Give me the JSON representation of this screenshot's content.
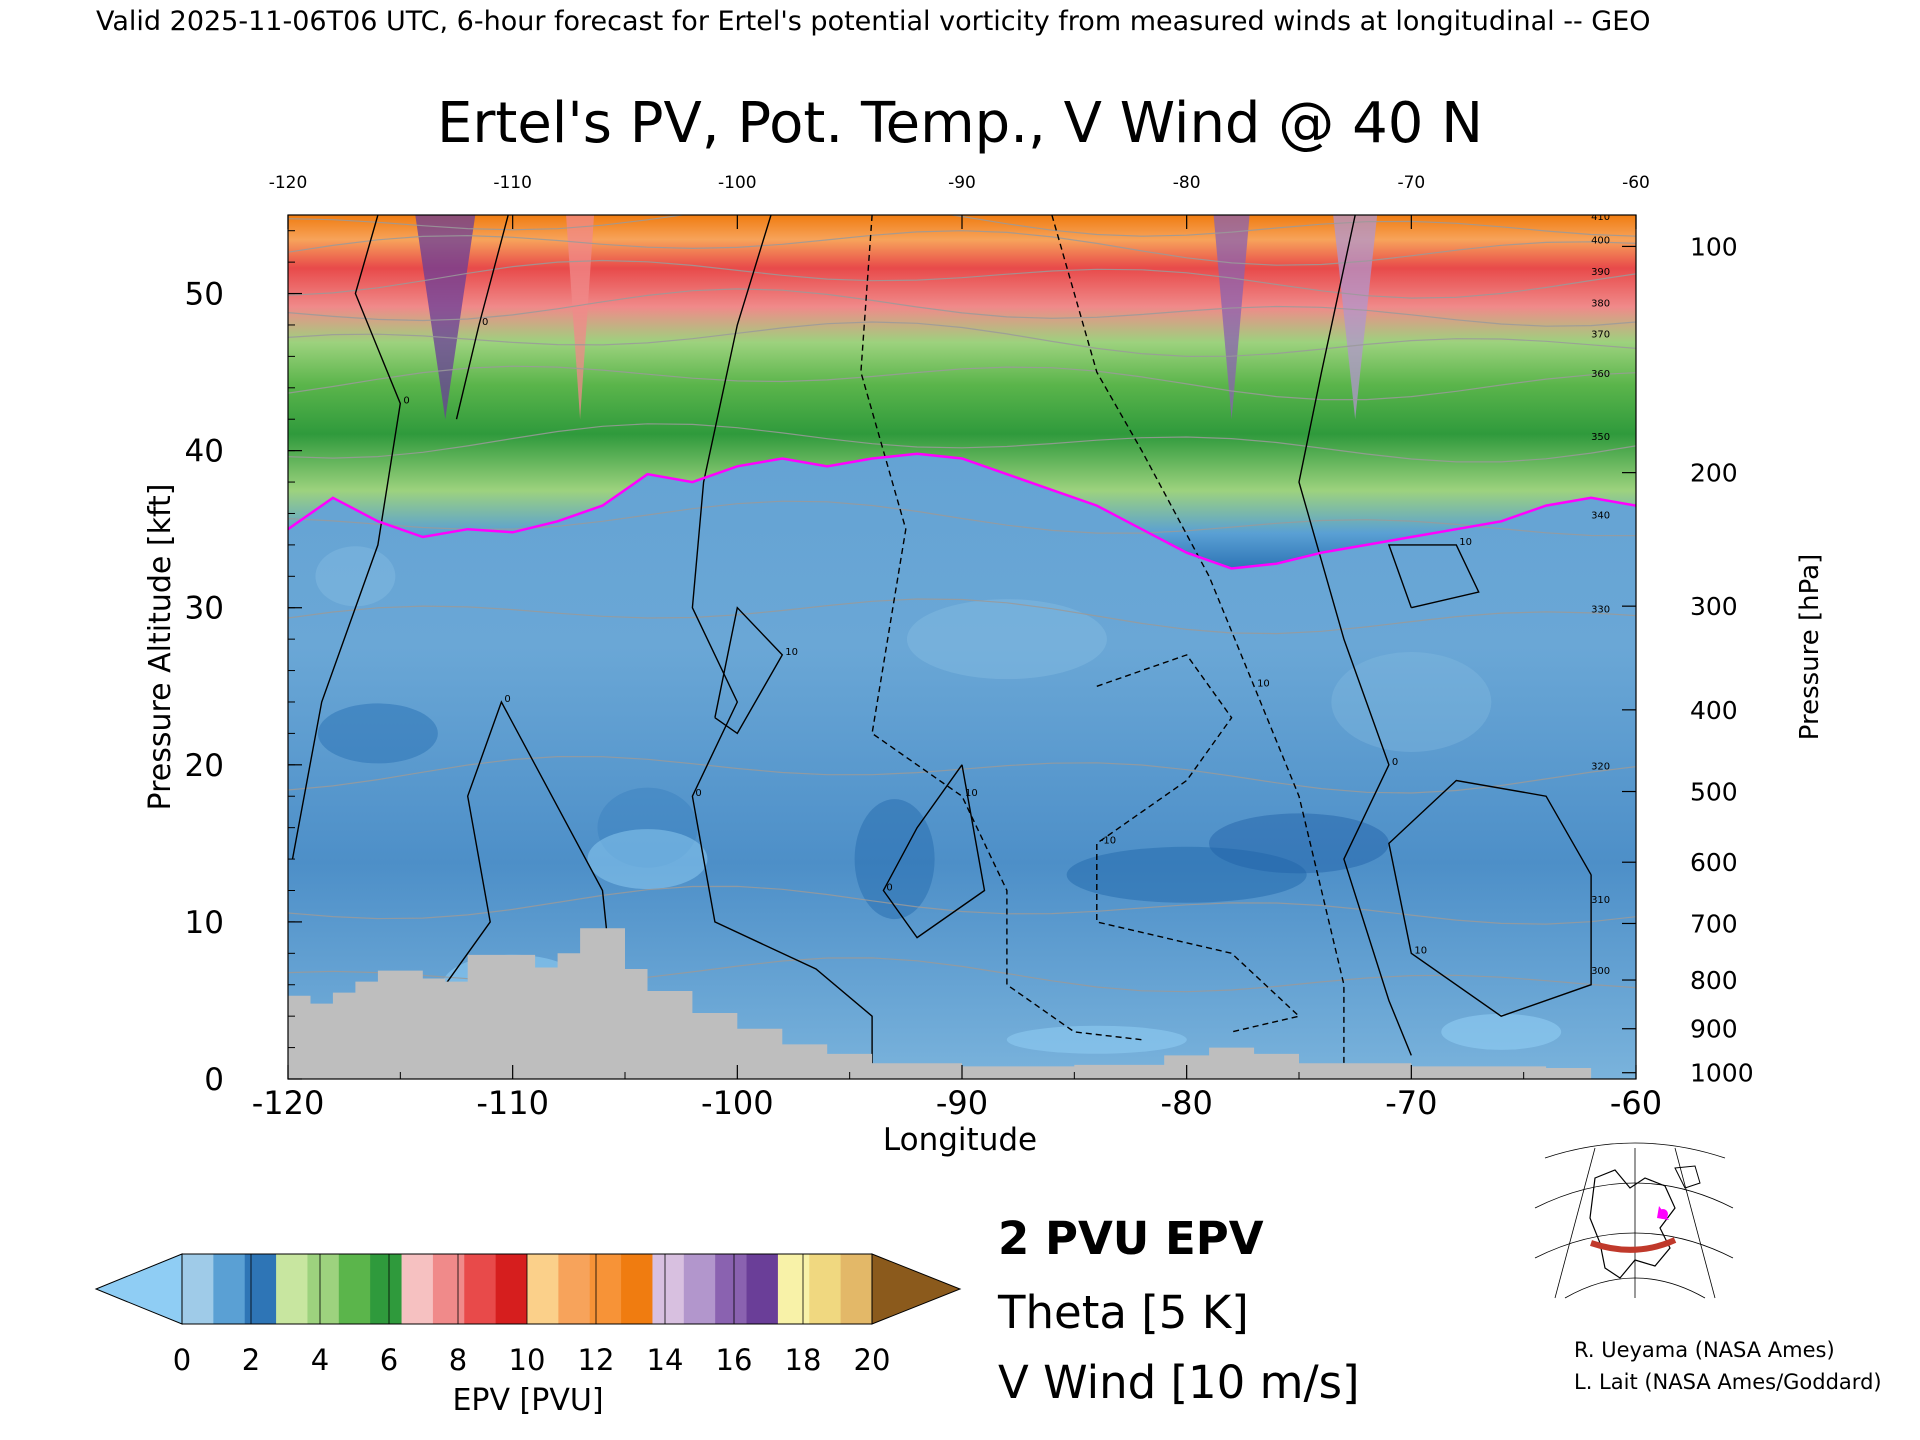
{
  "header": {
    "valid_line": "Valid 2025-11-06T06 UTC, 6-hour forecast for Ertel's potential vorticity from measured winds at longitudinal -- GEO"
  },
  "chart_data": {
    "type": "heatmap",
    "title": "Ertel's PV, Pot. Temp., V Wind @ 40 N",
    "xlabel": "Longitude",
    "ylabel_left": "Pressure Altitude [kft]",
    "ylabel_right": "Pressure [hPa]",
    "xlim": [
      -120,
      -60
    ],
    "ylim_kft": [
      0,
      55
    ],
    "x_ticks": [
      "-120",
      "-110",
      "-100",
      "-90",
      "-80",
      "-70",
      "-60"
    ],
    "x_tick_values": [
      -120,
      -110,
      -100,
      -90,
      -80,
      -70,
      -60
    ],
    "y_left_ticks": [
      "0",
      "10",
      "20",
      "30",
      "40",
      "50"
    ],
    "y_left_tick_values": [
      0,
      10,
      20,
      30,
      40,
      50
    ],
    "y_right_ticks": [
      {
        "label": "1000",
        "kft": 0.4
      },
      {
        "label": "900",
        "kft": 3.2
      },
      {
        "label": "800",
        "kft": 6.3
      },
      {
        "label": "700",
        "kft": 9.9
      },
      {
        "label": "600",
        "kft": 13.8
      },
      {
        "label": "500",
        "kft": 18.3
      },
      {
        "label": "400",
        "kft": 23.5
      },
      {
        "label": "300",
        "kft": 30.1
      },
      {
        "label": "200",
        "kft": 38.6
      },
      {
        "label": "100",
        "kft": 53.0
      }
    ],
    "tropopause_2pvu_kft": [
      {
        "lon": -120,
        "kft": 35.0
      },
      {
        "lon": -118,
        "kft": 37.0
      },
      {
        "lon": -116,
        "kft": 35.5
      },
      {
        "lon": -114,
        "kft": 34.5
      },
      {
        "lon": -112,
        "kft": 35.0
      },
      {
        "lon": -110,
        "kft": 34.8
      },
      {
        "lon": -108,
        "kft": 35.5
      },
      {
        "lon": -106,
        "kft": 36.5
      },
      {
        "lon": -104,
        "kft": 38.5
      },
      {
        "lon": -102,
        "kft": 38.0
      },
      {
        "lon": -100,
        "kft": 39.0
      },
      {
        "lon": -98,
        "kft": 39.5
      },
      {
        "lon": -96,
        "kft": 39.0
      },
      {
        "lon": -94,
        "kft": 39.5
      },
      {
        "lon": -92,
        "kft": 39.8
      },
      {
        "lon": -90,
        "kft": 39.5
      },
      {
        "lon": -88,
        "kft": 38.5
      },
      {
        "lon": -86,
        "kft": 37.5
      },
      {
        "lon": -84,
        "kft": 36.5
      },
      {
        "lon": -82,
        "kft": 35.0
      },
      {
        "lon": -80,
        "kft": 33.5
      },
      {
        "lon": -78,
        "kft": 32.5
      },
      {
        "lon": -76,
        "kft": 32.8
      },
      {
        "lon": -74,
        "kft": 33.5
      },
      {
        "lon": -72,
        "kft": 34.0
      },
      {
        "lon": -70,
        "kft": 34.5
      },
      {
        "lon": -68,
        "kft": 35.0
      },
      {
        "lon": -66,
        "kft": 35.5
      },
      {
        "lon": -64,
        "kft": 36.5
      },
      {
        "lon": -62,
        "kft": 37.0
      },
      {
        "lon": -60,
        "kft": 36.5
      }
    ],
    "terrain_kft": [
      {
        "lon": -120,
        "kft": 5.3
      },
      {
        "lon": -119,
        "kft": 4.8
      },
      {
        "lon": -118,
        "kft": 5.5
      },
      {
        "lon": -117,
        "kft": 6.2
      },
      {
        "lon": -116,
        "kft": 6.9
      },
      {
        "lon": -114,
        "kft": 6.4
      },
      {
        "lon": -113,
        "kft": 6.2
      },
      {
        "lon": -112,
        "kft": 7.9
      },
      {
        "lon": -110,
        "kft": 7.9
      },
      {
        "lon": -109,
        "kft": 7.1
      },
      {
        "lon": -108,
        "kft": 8.0
      },
      {
        "lon": -107,
        "kft": 9.6
      },
      {
        "lon": -105,
        "kft": 7.0
      },
      {
        "lon": -104,
        "kft": 5.6
      },
      {
        "lon": -102,
        "kft": 4.2
      },
      {
        "lon": -100,
        "kft": 3.2
      },
      {
        "lon": -98,
        "kft": 2.2
      },
      {
        "lon": -96,
        "kft": 1.6
      },
      {
        "lon": -94,
        "kft": 1.0
      },
      {
        "lon": -90,
        "kft": 0.8
      },
      {
        "lon": -85,
        "kft": 0.9
      },
      {
        "lon": -81,
        "kft": 1.5
      },
      {
        "lon": -79,
        "kft": 2.0
      },
      {
        "lon": -77,
        "kft": 1.6
      },
      {
        "lon": -75,
        "kft": 1.0
      },
      {
        "lon": -70,
        "kft": 0.8
      },
      {
        "lon": -64,
        "kft": 0.7
      },
      {
        "lon": -62,
        "kft": 0.0
      },
      {
        "lon": -60,
        "kft": 0.0
      }
    ],
    "v_wind_contours": [
      {
        "label": "0",
        "style": "solid",
        "points": [
          [
            -119.8,
            14
          ],
          [
            -118.5,
            24
          ],
          [
            -116,
            34
          ],
          [
            -115,
            43
          ],
          [
            -117,
            50
          ],
          [
            -116,
            55
          ]
        ]
      },
      {
        "label": "0",
        "style": "solid",
        "points": [
          [
            -110.2,
            55
          ],
          [
            -111.5,
            48
          ],
          [
            -112.5,
            42
          ]
        ]
      },
      {
        "label": "0",
        "style": "solid",
        "points": [
          [
            -105.5,
            5
          ],
          [
            -106,
            12
          ],
          [
            -109,
            20
          ],
          [
            -110.5,
            24
          ],
          [
            -112,
            18
          ],
          [
            -111,
            10
          ],
          [
            -113,
            6
          ]
        ]
      },
      {
        "label": "0",
        "style": "solid",
        "points": [
          [
            -98.5,
            55
          ],
          [
            -100,
            48
          ],
          [
            -101.5,
            38
          ],
          [
            -102,
            30
          ],
          [
            -100,
            24
          ],
          [
            -102,
            18
          ],
          [
            -101,
            10
          ],
          [
            -96.5,
            7
          ],
          [
            -94,
            4
          ],
          [
            -94,
            1
          ]
        ]
      },
      {
        "label": "10",
        "style": "solid",
        "points": [
          [
            -101,
            23
          ],
          [
            -100,
            30
          ],
          [
            -98,
            27
          ],
          [
            -100,
            22
          ],
          [
            -101,
            23
          ]
        ]
      },
      {
        "label": "0",
        "style": "solid",
        "points": [
          [
            -90,
            20
          ],
          [
            -89,
            12
          ],
          [
            -92,
            9
          ],
          [
            -93.5,
            12
          ],
          [
            -92,
            16
          ],
          [
            -90,
            20
          ]
        ]
      },
      {
        "label": "10",
        "style": "dashed",
        "points": [
          [
            -94,
            55
          ],
          [
            -94.5,
            45
          ],
          [
            -92.5,
            35
          ],
          [
            -94,
            22
          ],
          [
            -90,
            18
          ],
          [
            -88,
            12
          ],
          [
            -88,
            6
          ],
          [
            -85,
            3
          ],
          [
            -82,
            2.5
          ]
        ]
      },
      {
        "label": "-10",
        "style": "dashed",
        "points": [
          [
            -84,
            25
          ],
          [
            -80,
            27
          ],
          [
            -78,
            23
          ],
          [
            -80,
            19
          ],
          [
            -84,
            15
          ],
          [
            -84,
            10
          ],
          [
            -78,
            8
          ],
          [
            -75,
            4
          ],
          [
            -78,
            3
          ]
        ]
      },
      {
        "label": "10",
        "style": "dashed",
        "points": [
          [
            -86,
            55
          ],
          [
            -84,
            45
          ],
          [
            -82,
            40
          ],
          [
            -79,
            32
          ],
          [
            -77,
            25
          ],
          [
            -75,
            18
          ],
          [
            -74,
            12
          ],
          [
            -73,
            6
          ],
          [
            -73,
            1
          ]
        ]
      },
      {
        "label": "0",
        "style": "solid",
        "points": [
          [
            -72.5,
            55
          ],
          [
            -74,
            45
          ],
          [
            -75,
            38
          ],
          [
            -73,
            28
          ],
          [
            -71,
            20
          ],
          [
            -73,
            14
          ],
          [
            -71,
            5
          ],
          [
            -70,
            1.5
          ]
        ]
      },
      {
        "label": "10",
        "style": "solid",
        "points": [
          [
            -70,
            30
          ],
          [
            -67,
            31
          ],
          [
            -68,
            34
          ],
          [
            -71,
            34
          ],
          [
            -70,
            30
          ]
        ]
      },
      {
        "label": "10",
        "style": "solid",
        "points": [
          [
            -62,
            13
          ],
          [
            -64,
            18
          ],
          [
            -68,
            19
          ],
          [
            -71,
            15
          ],
          [
            -70,
            8
          ],
          [
            -66,
            4
          ],
          [
            -62,
            6
          ],
          [
            -62,
            13
          ]
        ]
      }
    ],
    "theta_levels_K": [
      "300",
      "310",
      "320",
      "330",
      "340",
      "350",
      "360",
      "370",
      "380",
      "390",
      "400",
      "410"
    ],
    "theta_level_kft": [
      6.5,
      11.0,
      19.5,
      29.5,
      35.5,
      40.5,
      44.5,
      47.0,
      49.0,
      51.0,
      53.0,
      54.5
    ],
    "colorbar": {
      "label": "EPV [PVU]",
      "ticks": [
        "0",
        "2",
        "4",
        "6",
        "8",
        "10",
        "12",
        "14",
        "16",
        "18",
        "20"
      ],
      "colors": [
        "#9fcbe8",
        "#5aa0d4",
        "#2e75b6",
        "#c8e6a0",
        "#9dd27e",
        "#5bb54b",
        "#2f9a3c",
        "#f6c1c1",
        "#f08a8a",
        "#e84a4a",
        "#d61e1e",
        "#fbd08a",
        "#f7a35b",
        "#f79337",
        "#f07c10",
        "#d8c0e0",
        "#b296cc",
        "#8a62b0",
        "#6a3e98",
        "#f8f2a8",
        "#f0d880",
        "#e3b868"
      ],
      "under_color": "#8fcdf4",
      "over_color": "#8b5a1c"
    },
    "legend": {
      "pv_label": "2 PVU EPV",
      "pv_color": "#ff00ff",
      "theta_label": "Theta [5 K]",
      "theta_color": "#b4b4b4",
      "wind_label": "V Wind [10 m/s]",
      "wind_color": "#000000"
    },
    "colors": {
      "terrain": "#bebebe",
      "troposphere": "#5f9fd1",
      "tropopause": "#ff00ff"
    }
  },
  "map_inset": {
    "icon": "globe-map-icon",
    "section_color": "#c0392b",
    "marker_color": "#ff00ff"
  },
  "credits": {
    "line1": "R. Ueyama (NASA Ames)",
    "line2": "L. Lait (NASA Ames/Goddard)"
  }
}
